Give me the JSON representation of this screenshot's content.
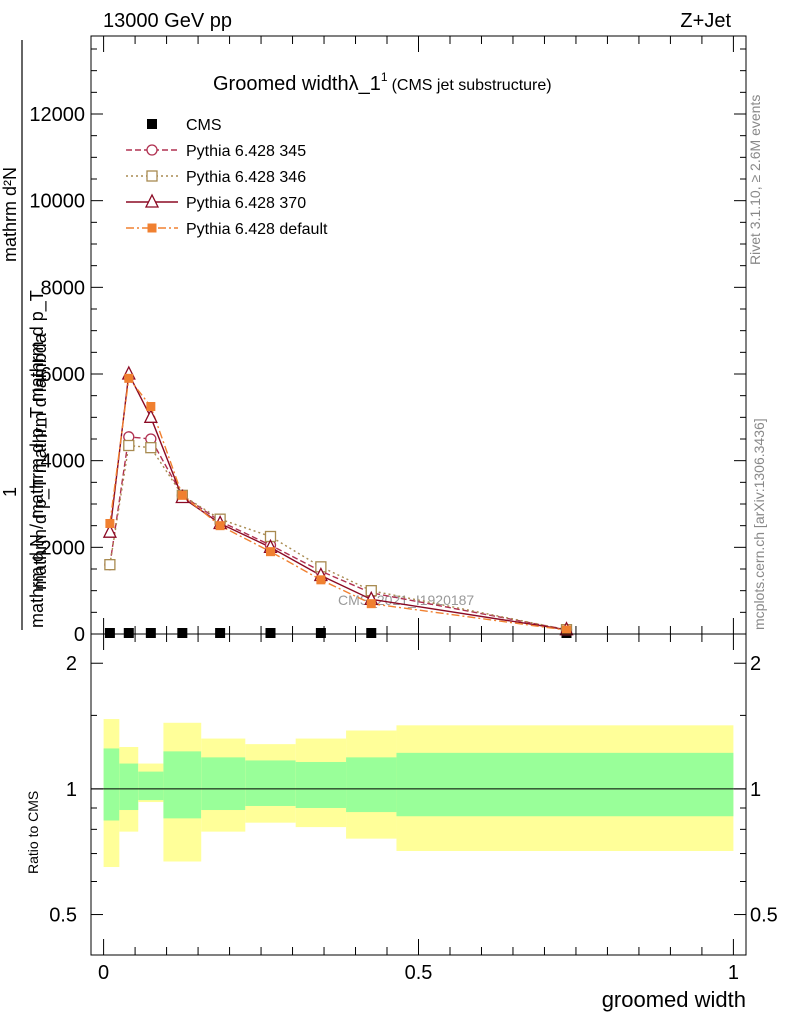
{
  "header": {
    "left": "13000 GeV pp",
    "right": "Z+Jet"
  },
  "side_text": {
    "rivet": "Rivet 3.1.10, ≥ 2.6M events",
    "mcplots": "mcplots.cern.ch [arXiv:1306.3436]"
  },
  "main_title": "Groomed widthλ_1",
  "main_title_sup": "1",
  "main_title_sub": "(CMS jet substructure)",
  "y_label_main_num": "mathrm d²N",
  "y_label_main_den": "mathrm d p_T mathrm d lambda",
  "y_label_main_prefix": "1",
  "y_label_main_prefix_den": "mathrm d N / mathrm d p_T mathrm d p_T",
  "watermark": "CMS_2021_I1920187",
  "ratio_ylabel": "Ratio to CMS",
  "xlabel": "groomed width",
  "colors": {
    "data": "#000000",
    "p345": "#b03050",
    "p346": "#a88a50",
    "p370": "#8b0a24",
    "pdef": "#f08030",
    "band_inner": "#99ff99",
    "band_outer": "#ffff99"
  },
  "chart_data": [
    {
      "type": "line",
      "title": "Groomed widthλ_1",
      "xlabel": "",
      "ylabel": "mathrm d²N / mathrm d p_T mathrm d lambda",
      "xlim": [
        -0.02,
        1.02
      ],
      "ylim": [
        0,
        13800
      ],
      "y_ticks": [
        0,
        2000,
        4000,
        6000,
        8000,
        10000,
        12000
      ],
      "y_tick_labels": [
        "0",
        "2000",
        "4000",
        "6000",
        "8000",
        "10000",
        "12000"
      ],
      "legend_position": "top-left",
      "x": [
        0.01,
        0.04,
        0.075,
        0.125,
        0.185,
        0.265,
        0.345,
        0.425,
        0.735
      ],
      "series": [
        {
          "name": "CMS",
          "style": "square",
          "values": [
            0,
            0,
            0,
            0,
            0,
            0,
            0,
            0,
            0
          ]
        },
        {
          "name": "Pythia 6.428 345",
          "style": "open-circle-dashed",
          "values": [
            1600,
            4550,
            4500,
            3200,
            2600,
            2050,
            1450,
            950,
            100
          ]
        },
        {
          "name": "Pythia 6.428 346",
          "style": "open-square-dotted",
          "values": [
            1600,
            4350,
            4300,
            3200,
            2650,
            2250,
            1550,
            1000,
            100
          ]
        },
        {
          "name": "Pythia 6.428 370",
          "style": "open-triangle-solid",
          "values": [
            2350,
            6000,
            5000,
            3150,
            2550,
            2000,
            1350,
            800,
            100
          ]
        },
        {
          "name": "Pythia 6.428 default",
          "style": "filled-square-dashdot",
          "values": [
            2550,
            5900,
            5250,
            3200,
            2500,
            1900,
            1250,
            700,
            90
          ]
        }
      ]
    },
    {
      "type": "area",
      "title": "",
      "xlabel": "groomed width",
      "ylabel": "Ratio to CMS",
      "xlim": [
        -0.02,
        1.02
      ],
      "ylim": [
        0.4,
        2.35
      ],
      "y_scale": "log",
      "y_ticks": [
        0.5,
        1,
        2
      ],
      "y_tick_labels": [
        "0.5",
        "1",
        "2"
      ],
      "x_ticks": [
        0,
        0.5,
        1
      ],
      "x_tick_labels": [
        "0",
        "0.5",
        "1"
      ],
      "bin_edges": [
        0.0,
        0.025,
        0.055,
        0.095,
        0.155,
        0.225,
        0.305,
        0.385,
        0.465,
        1.0
      ],
      "inner_band": {
        "low": [
          0.84,
          0.89,
          0.94,
          0.85,
          0.89,
          0.91,
          0.9,
          0.88,
          0.86
        ],
        "high": [
          1.25,
          1.15,
          1.1,
          1.23,
          1.19,
          1.17,
          1.16,
          1.19,
          1.22
        ]
      },
      "outer_band": {
        "low": [
          0.65,
          0.79,
          0.93,
          0.67,
          0.79,
          0.83,
          0.81,
          0.76,
          0.71
        ],
        "high": [
          1.47,
          1.26,
          1.15,
          1.44,
          1.32,
          1.28,
          1.32,
          1.38,
          1.42
        ]
      },
      "reference_line": 1
    }
  ]
}
